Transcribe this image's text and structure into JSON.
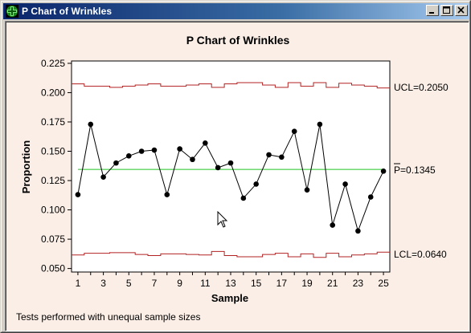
{
  "window": {
    "title": "P Chart of Wrinkles",
    "icon": "minitab-green-cross-icon",
    "buttons": {
      "minimize": "minimize-icon",
      "maximize": "maximize-icon",
      "close": "close-icon"
    }
  },
  "colors": {
    "titlebar_start": "#0a246a",
    "background": "#fbeee6",
    "data_line": "#000000",
    "center_line": "#22c422",
    "control_limits": "#b22222"
  },
  "footnote": "Tests performed with unequal sample sizes",
  "chart_data": {
    "type": "line",
    "title": "P Chart of Wrinkles",
    "xlabel": "Sample",
    "ylabel": "Proportion",
    "x_ticks": [
      "1",
      "3",
      "5",
      "7",
      "9",
      "11",
      "13",
      "15",
      "17",
      "19",
      "21",
      "23",
      "25"
    ],
    "y_ticks": [
      "0.050",
      "0.075",
      "0.100",
      "0.125",
      "0.150",
      "0.175",
      "0.200",
      "0.225"
    ],
    "xlim": [
      0.5,
      25.5
    ],
    "ylim": [
      0.047,
      0.227
    ],
    "grid": false,
    "series": [
      {
        "kind": "proportion",
        "x": [
          1,
          2,
          3,
          4,
          5,
          6,
          7,
          8,
          9,
          10,
          11,
          12,
          13,
          14,
          15,
          16,
          17,
          18,
          19,
          20,
          21,
          22,
          23,
          24,
          25
        ],
        "values": [
          0.113,
          0.173,
          0.128,
          0.14,
          0.146,
          0.15,
          0.151,
          0.113,
          0.152,
          0.143,
          0.157,
          0.136,
          0.14,
          0.11,
          0.122,
          0.147,
          0.145,
          0.167,
          0.117,
          0.173,
          0.087,
          0.122,
          0.082,
          0.111,
          0.133
        ]
      }
    ],
    "ucl_values": [
      0.2075,
      0.2055,
      0.2055,
      0.2045,
      0.2055,
      0.2065,
      0.2075,
      0.2055,
      0.2055,
      0.2065,
      0.2075,
      0.2045,
      0.2075,
      0.2085,
      0.2085,
      0.2065,
      0.2045,
      0.2085,
      0.2055,
      0.2085,
      0.2045,
      0.208,
      0.2065,
      0.2055,
      0.204
    ],
    "lcl_values": [
      0.0615,
      0.063,
      0.063,
      0.0635,
      0.0635,
      0.062,
      0.061,
      0.0625,
      0.0625,
      0.062,
      0.0615,
      0.0645,
      0.061,
      0.06,
      0.06,
      0.062,
      0.063,
      0.06,
      0.0625,
      0.0595,
      0.063,
      0.06,
      0.0615,
      0.0625,
      0.064
    ],
    "center_value": 0.1345,
    "limit_labels": {
      "ucl": "UCL=0.2050",
      "center_p": "P",
      "center_rest": "=0.1345",
      "lcl": "LCL=0.0640"
    }
  }
}
